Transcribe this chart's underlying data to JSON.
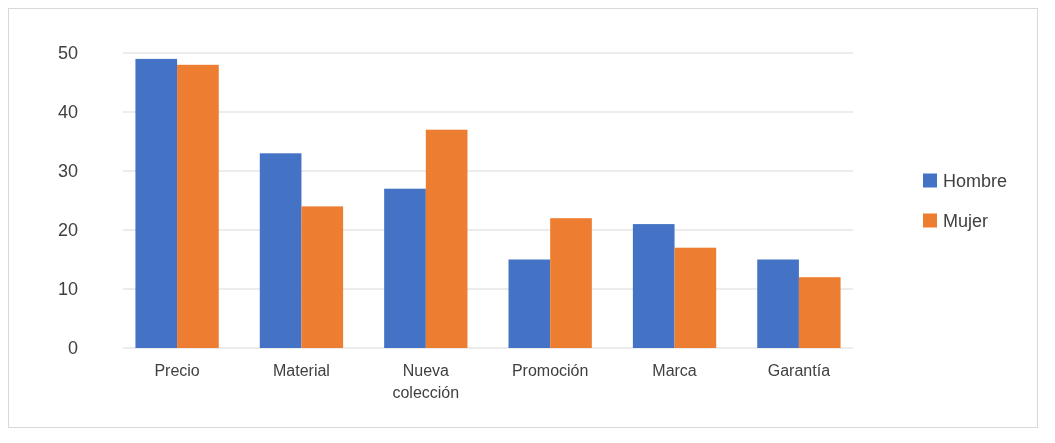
{
  "chart_data": {
    "type": "bar",
    "categories": [
      "Precio",
      "Material",
      "Nueva colección",
      "Promoción",
      "Marca",
      "Garantía"
    ],
    "series": [
      {
        "name": "Hombre",
        "color": "#4472c4",
        "values": [
          49,
          33,
          27,
          15,
          21,
          15
        ]
      },
      {
        "name": "Mujer",
        "color": "#ed7d31",
        "values": [
          48,
          24,
          37,
          22,
          17,
          12
        ]
      }
    ],
    "ylim": [
      0,
      50
    ],
    "yticks": [
      0,
      10,
      20,
      30,
      40,
      50
    ],
    "grid": "y",
    "legend": "right"
  }
}
